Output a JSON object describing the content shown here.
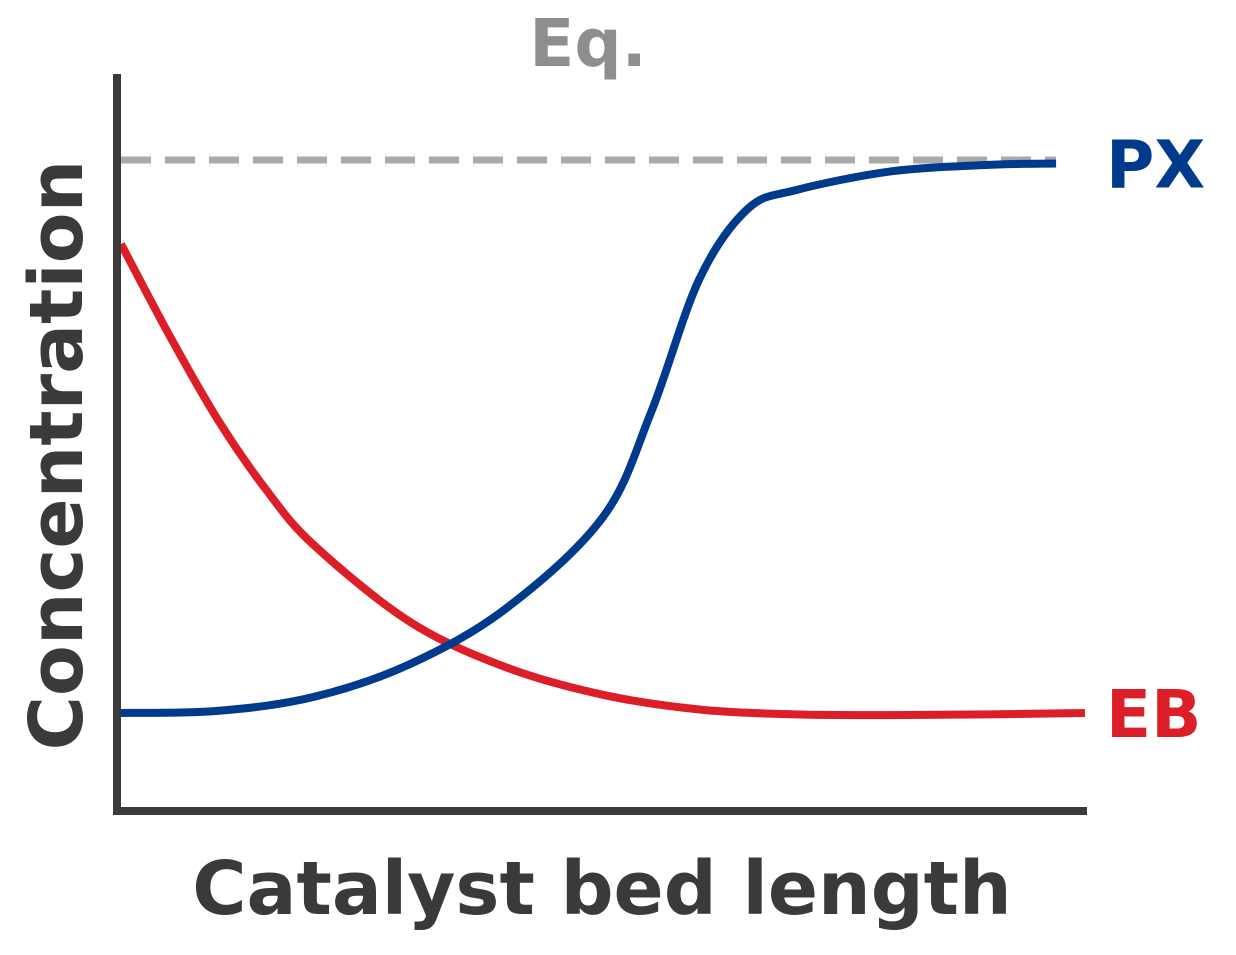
{
  "chart_data": {
    "type": "line",
    "title": "",
    "xlabel": "Catalyst bed length",
    "ylabel": "Concentration",
    "xlim": [
      0,
      1
    ],
    "ylim": [
      0,
      1
    ],
    "grid": false,
    "legend": "none",
    "annotations": [
      {
        "text": "Eq.",
        "y": 0.93,
        "style": "dashed",
        "color": "#a9a9a9"
      }
    ],
    "series": [
      {
        "name": "PX",
        "color": "#003a8c",
        "x": [
          0.0,
          0.1,
          0.2,
          0.3,
          0.4,
          0.5,
          0.55,
          0.6,
          0.65,
          0.7,
          0.8,
          0.9,
          0.97
        ],
        "y": [
          0.14,
          0.143,
          0.163,
          0.21,
          0.29,
          0.42,
          0.57,
          0.76,
          0.86,
          0.887,
          0.914,
          0.923,
          0.925
        ]
      },
      {
        "name": "EB",
        "color": "#dc1e28",
        "x": [
          0.0,
          0.05,
          0.1,
          0.15,
          0.2,
          0.3,
          0.4,
          0.5,
          0.6,
          0.7,
          0.8,
          0.9,
          1.0
        ],
        "y": [
          0.81,
          0.68,
          0.56,
          0.46,
          0.38,
          0.27,
          0.205,
          0.166,
          0.145,
          0.138,
          0.137,
          0.138,
          0.14
        ]
      }
    ]
  }
}
